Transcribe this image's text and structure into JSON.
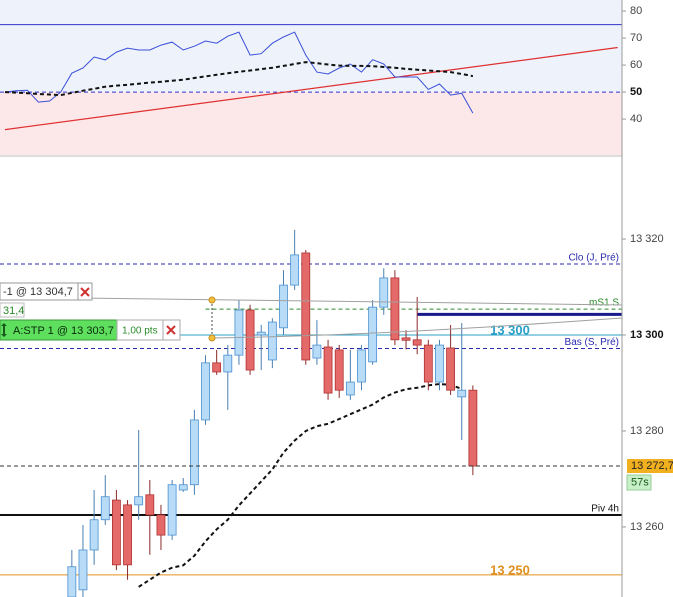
{
  "chart_data": [
    {
      "type": "line",
      "ylim": [
        26.7,
        84.1
      ],
      "yticks": [
        80,
        70,
        60,
        50,
        40
      ],
      "bold_tick": 50,
      "zones": [
        {
          "above": 50,
          "color": "#edf2fb"
        },
        {
          "below": 50,
          "color": "#fde8e9"
        }
      ],
      "levels": [
        {
          "value": 75,
          "color": "#3333cc"
        },
        {
          "value": 50,
          "color": "#3333cc",
          "dashed": true
        }
      ],
      "trendline": {
        "x": [
          0,
          55
        ],
        "values": [
          36.1,
          66.5
        ],
        "color": "#e03030"
      },
      "series": [
        {
          "color": "#3a4fd8",
          "values": [
            50,
            50.5,
            50.7,
            46.3,
            46.7,
            50,
            57,
            58.9,
            63,
            61.9,
            64.8,
            66.3,
            65.6,
            65.6,
            67.4,
            68.5,
            65.6,
            67,
            68.9,
            68.1,
            70.7,
            72.2,
            63.7,
            64.2,
            68.1,
            70.4,
            72.2,
            63.7,
            57.4,
            56.7,
            58.9,
            60.4,
            57.4,
            62,
            60.4,
            55.6,
            55.6,
            55.6,
            51,
            53,
            48.9,
            49.6,
            42.2
          ]
        },
        {
          "color": "#111111",
          "dashed": true,
          "values": [
            50,
            49.8,
            49.6,
            49.3,
            49.1,
            48.9,
            49.7,
            50.5,
            51.2,
            52,
            52.4,
            52.7,
            53.1,
            53.5,
            53.8,
            54.2,
            54.6,
            55.2,
            55.8,
            56.4,
            57,
            57.5,
            58,
            58.5,
            59,
            59.7,
            60.4,
            61.1,
            60.7,
            60.2,
            59.8,
            59.7,
            59.7,
            59.6,
            59.3,
            59,
            58.6,
            58.3,
            58,
            57.7,
            57.4,
            56.7,
            55.9
          ]
        }
      ]
    },
    {
      "type": "candlestick",
      "ylim": [
        13245.4,
        13337.1
      ],
      "yticks": [
        {
          "value": 13320,
          "label": "13 320"
        },
        {
          "value": 13300,
          "label": "13 300"
        },
        {
          "value": 13280,
          "label": "13 280"
        },
        {
          "value": 13260,
          "label": "13 260"
        }
      ],
      "bold_tick": 13300,
      "up_color": "#b8dcf7",
      "down_color": "#e46a6a",
      "open": [
        null,
        null,
        null,
        null,
        null,
        null,
        13245.4,
        13246.9,
        13255.2,
        13261.5,
        13265.6,
        13264.6,
        13264.6,
        13266.7,
        13262.5,
        13258.3,
        13267.7,
        13268.8,
        13282.3,
        13294.2,
        13292.3,
        13295.8,
        13305.2,
        13300,
        13294.8,
        13301.5,
        13310.4,
        13317.1,
        13295.2,
        13297.5,
        13296.9,
        13287.5,
        13290.2,
        13294.4,
        13305.8,
        13311.9,
        13299.4,
        13299,
        13297.9,
        13290.2,
        13297.3,
        13287.1,
        13288.5
      ],
      "high": [
        null,
        null,
        null,
        null,
        null,
        null,
        13255.2,
        13260.4,
        13267.7,
        13270.8,
        13267.7,
        13265.6,
        13280.2,
        13269.8,
        13264.6,
        13269.8,
        13270.2,
        13284.4,
        13295.8,
        13296.9,
        13297.9,
        13307.3,
        13306.3,
        13302.1,
        13303.5,
        13313.5,
        13321.9,
        13317.7,
        13303.1,
        13299,
        13297.9,
        13296.9,
        13297.9,
        13307.3,
        13313.9,
        13313.5,
        13301,
        13307.9,
        13299,
        13299,
        13302.1,
        13302.5,
        13289.5
      ],
      "low": [
        null,
        null,
        null,
        null,
        null,
        null,
        13245.4,
        13245.4,
        13252.1,
        13260.4,
        13251,
        13249,
        13261.5,
        13254.2,
        13255.2,
        13257.3,
        13267.3,
        13266.7,
        13281.3,
        13291.7,
        13284.4,
        13293.8,
        13291.7,
        13292.7,
        13293.1,
        13300,
        13309.4,
        13293.8,
        13293.8,
        13286.5,
        13286.9,
        13286.5,
        13288.5,
        13293.8,
        13304.2,
        13297.9,
        13297,
        13296,
        13288.5,
        13288.5,
        13287.5,
        13278.1,
        13270.8
      ],
      "close": [
        null,
        null,
        null,
        null,
        null,
        null,
        13251.7,
        13255.2,
        13261.5,
        13266.3,
        13252.1,
        13252.1,
        13266.3,
        13262.5,
        13258.3,
        13268.8,
        13268.8,
        13282.3,
        13294.2,
        13292.3,
        13295.8,
        13305.2,
        13292.7,
        13300.6,
        13302.7,
        13310.4,
        13316.7,
        13294.8,
        13297.9,
        13287.9,
        13288.5,
        13290.2,
        13296.9,
        13305.8,
        13311.9,
        13299,
        13298.9,
        13297.9,
        13290.2,
        13297.9,
        13288.5,
        13288.5,
        13272.7
      ],
      "series": [
        {
          "color": "#111111",
          "dashed": true,
          "values": [
            null,
            null,
            null,
            null,
            null,
            null,
            null,
            null,
            null,
            null,
            null,
            null,
            13247.5,
            13249,
            13250.5,
            13251.5,
            13252,
            13254,
            13257,
            13259.5,
            13261.5,
            13264.5,
            13267,
            13269.5,
            13272,
            13275.5,
            13278,
            13280,
            13281,
            13281.5,
            13282.5,
            13283.5,
            13284.5,
            13285.5,
            13287,
            13288,
            13288.7,
            13289,
            13289.5,
            13289.8,
            13289.6,
            13288.8,
            null
          ]
        }
      ],
      "levels": [
        {
          "name": "Clo (J, Pré)",
          "value": 13314.8,
          "color": "#2a2ab0",
          "dashed": true
        },
        {
          "name": "mS1 S",
          "value": 13305.4,
          "color": "#2a8a2a",
          "dashed": true,
          "from": 18
        },
        {
          "value": 13304.3,
          "color": "#1a1a8c",
          "width": 3,
          "from": 37
        },
        {
          "name": "13 300",
          "value": 13300,
          "color": "#2aa0c8",
          "emphasis": true
        },
        {
          "name": "Bas (S, Pré)",
          "value": 13297.2,
          "color": "#2a2ab0",
          "dashed": true
        },
        {
          "name": "Piv 4h",
          "value": 13262.5,
          "color": "#111111",
          "width": 2
        },
        {
          "name": "13 250",
          "value": 13250,
          "color": "#e09020",
          "emphasis": true
        }
      ],
      "last_price": {
        "value": 13272.7,
        "label": "13 272,7",
        "timer": "57s",
        "color": "#f0b020",
        "timer_color": "#c8f0c8"
      }
    }
  ],
  "order_panel": {
    "order": "-1 @ 13 304,7",
    "distance": "31,4",
    "stop": "A:STP 1 @ 13 303,7",
    "stop_points": "1,00 pts"
  }
}
